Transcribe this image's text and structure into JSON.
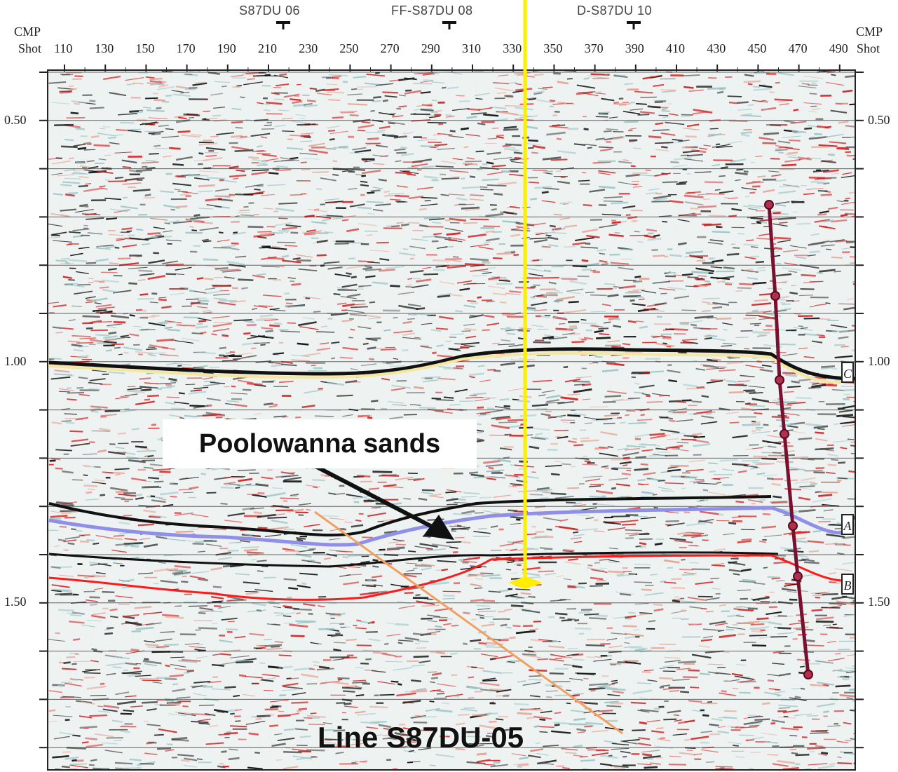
{
  "header": {
    "cmp_label": "CMP",
    "shot_label": "Shot",
    "cmp_ticks": [
      "110",
      "130",
      "150",
      "170",
      "190",
      "210",
      "230",
      "250",
      "270",
      "290",
      "310",
      "330",
      "350",
      "370",
      "390",
      "410",
      "430",
      "450",
      "470",
      "490"
    ]
  },
  "well_ties": [
    {
      "label": "S87DU 06",
      "cmp": 219
    },
    {
      "label": "FF-S87DU 08",
      "cmp": 300
    },
    {
      "label": "D-S87DU 10",
      "cmp": 390
    }
  ],
  "time_axis": {
    "labels": [
      "0.50",
      "1.00",
      "1.50"
    ]
  },
  "horizon_tags": [
    "C",
    "A",
    "B"
  ],
  "annotations": {
    "callout": "Poolowanna sands",
    "line_title": "Line S87DU-05"
  },
  "colors": {
    "seismic_red": "#d42020",
    "seismic_black": "#111111",
    "seismic_cyan": "#9cc6c6",
    "well_marker": "#ffee00",
    "yellow_horizon": "#f5e6a0",
    "purple_horizon": "#8f8fe8",
    "red_horizon": "#ff1a1a",
    "fault_line": "#7a1030",
    "orange_line": "#f2a060"
  }
}
